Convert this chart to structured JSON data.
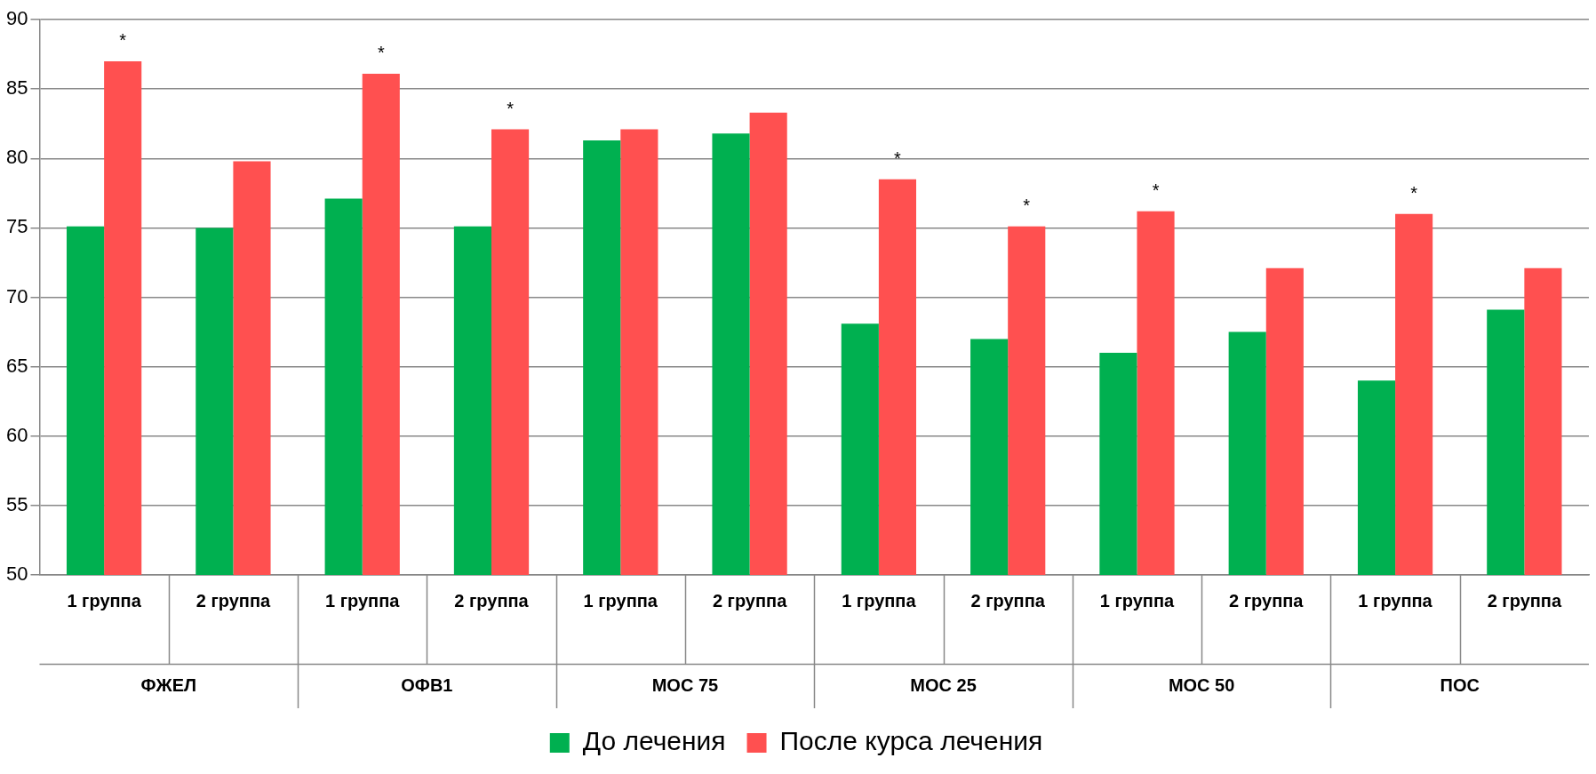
{
  "chart_data": {
    "type": "bar",
    "categories": [
      "1 группа",
      "2 группа",
      "1 группа",
      "2 группа",
      "1 группа",
      "2 группа",
      "1 группа",
      "2 группа",
      "1 группа",
      "2 группа",
      "1 группа",
      "2 группа"
    ],
    "series": [
      {
        "name": "До лечения",
        "color": "#00b050",
        "values": [
          75.1,
          75.0,
          77.1,
          75.1,
          81.3,
          81.8,
          68.1,
          67.0,
          66.0,
          67.5,
          64.0,
          69.1
        ]
      },
      {
        "name": "После курса лечения",
        "color": "#ff5050",
        "values": [
          87.0,
          79.8,
          86.1,
          82.1,
          82.1,
          83.3,
          78.5,
          75.1,
          76.2,
          72.1,
          76.0,
          72.1
        ],
        "value_labels": [
          "*",
          null,
          "*",
          "*",
          null,
          null,
          "*",
          "*",
          "*",
          null,
          "*",
          null
        ]
      }
    ],
    "annotations": [
      "ФЖЕЛ",
      "ОФВ1",
      "МОС 75",
      "МОС 25",
      "МОС 50",
      "ПОС"
    ],
    "ylim": [
      50,
      90
    ],
    "yticks": [
      50,
      55,
      60,
      65,
      70,
      75,
      80,
      85,
      90
    ],
    "grid": "y",
    "legend": "bottom"
  }
}
